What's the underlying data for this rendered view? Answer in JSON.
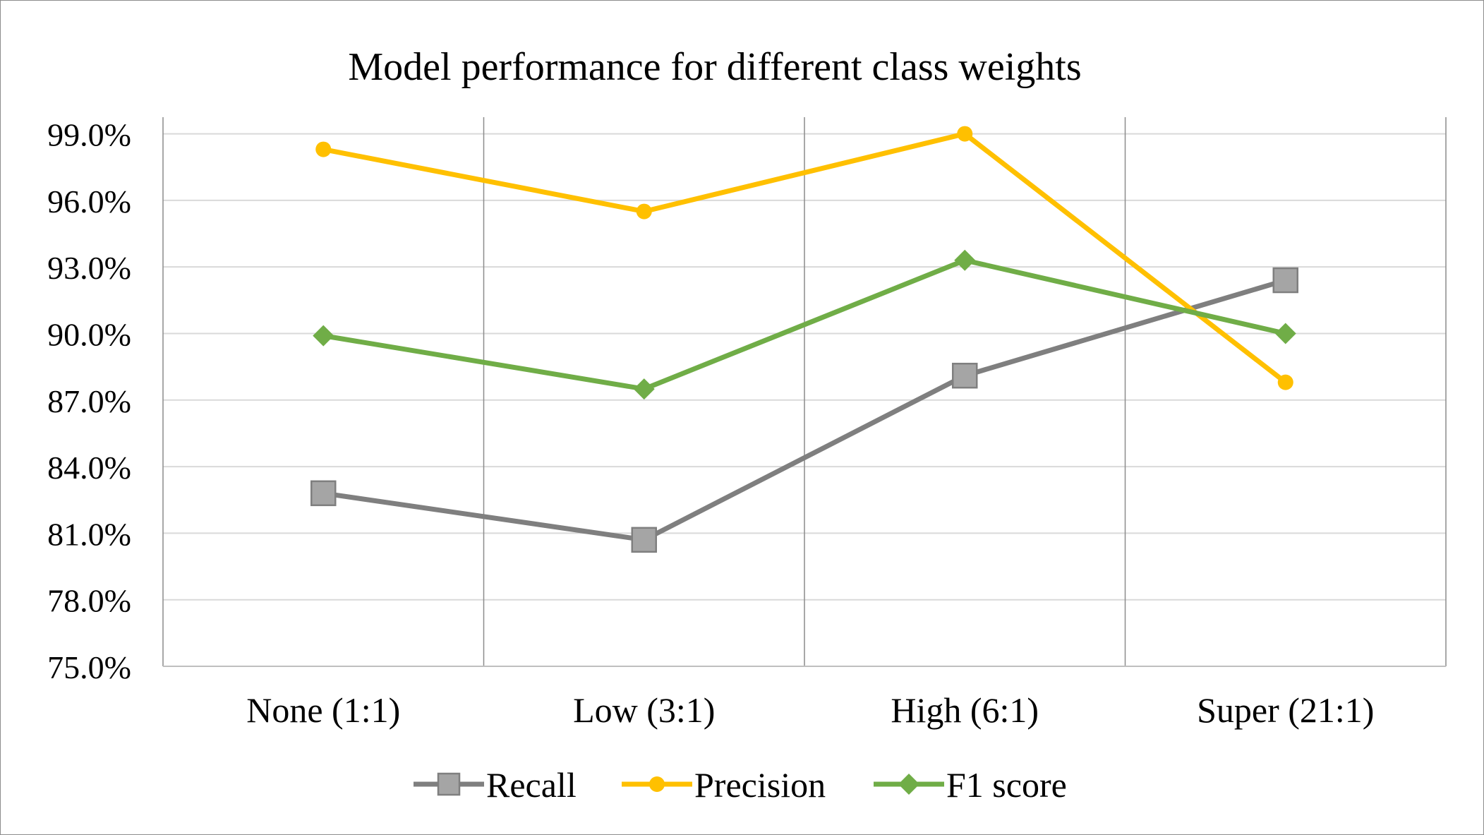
{
  "chart_data": {
    "type": "line",
    "title": "Model performance for different class weights",
    "xlabel": "",
    "ylabel": "",
    "categories": [
      "None (1:1)",
      "Low (3:1)",
      "High (6:1)",
      "Super (21:1)"
    ],
    "ylim": [
      75.0,
      100.0
    ],
    "yticks": [
      75.0,
      78.0,
      81.0,
      84.0,
      87.0,
      90.0,
      93.0,
      96.0,
      99.0
    ],
    "ytick_labels": [
      "75.0%",
      "78.0%",
      "81.0%",
      "84.0%",
      "87.0%",
      "90.0%",
      "93.0%",
      "96.0%",
      "99.0%"
    ],
    "grid": true,
    "legend_position": "bottom",
    "series": [
      {
        "name": "Recall",
        "values": [
          82.8,
          80.7,
          88.1,
          92.4
        ],
        "color": "#7f7f7f",
        "marker": "square",
        "marker_fill": "#a5a5a5"
      },
      {
        "name": "Precision",
        "values": [
          98.3,
          95.5,
          99.0,
          87.8
        ],
        "color": "#ffc000",
        "marker": "circle",
        "marker_fill": "#ffc000"
      },
      {
        "name": "F1 score",
        "values": [
          89.9,
          87.5,
          93.3,
          90.0
        ],
        "color": "#70ad47",
        "marker": "diamond",
        "marker_fill": "#70ad47"
      }
    ]
  }
}
